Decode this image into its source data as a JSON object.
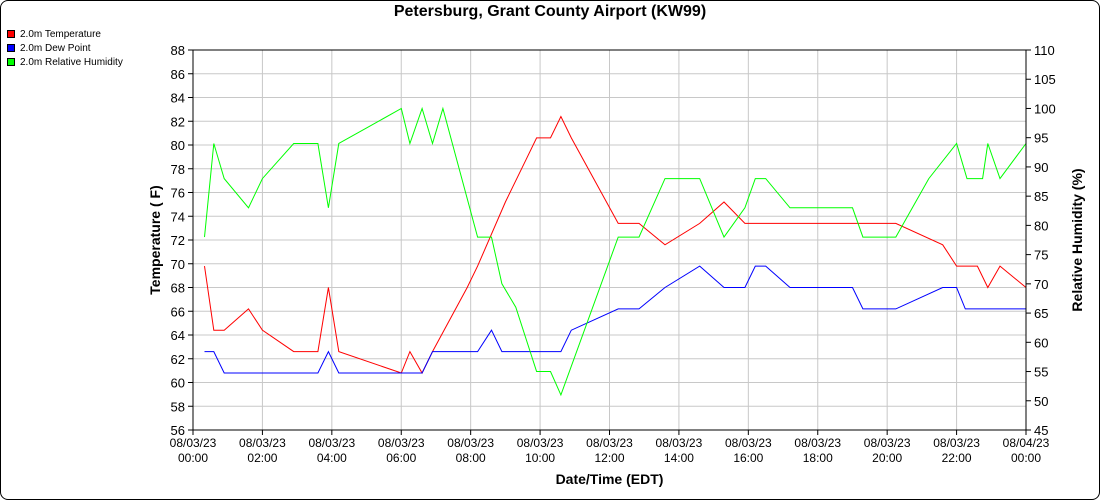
{
  "chart_data": {
    "type": "line",
    "title": "Petersburg, Grant County Airport (KW99)",
    "xlabel": "Date/Time (EDT)",
    "ylabel_left": "Temperature ( F)",
    "ylabel_right": "Relative Humidity (%)",
    "ylim_left": [
      56,
      88
    ],
    "yticks_left": [
      56,
      58,
      60,
      62,
      64,
      66,
      68,
      70,
      72,
      74,
      76,
      78,
      80,
      82,
      84,
      86,
      88
    ],
    "ylim_right": [
      45,
      110
    ],
    "yticks_right": [
      45,
      50,
      55,
      60,
      65,
      70,
      75,
      80,
      85,
      90,
      95,
      100,
      105,
      110
    ],
    "xlim_hours": [
      0,
      24
    ],
    "xticks": [
      {
        "hour": 0,
        "date": "08/03/23",
        "time": "00:00"
      },
      {
        "hour": 2,
        "date": "08/03/23",
        "time": "02:00"
      },
      {
        "hour": 4,
        "date": "08/03/23",
        "time": "04:00"
      },
      {
        "hour": 6,
        "date": "08/03/23",
        "time": "06:00"
      },
      {
        "hour": 8,
        "date": "08/03/23",
        "time": "08:00"
      },
      {
        "hour": 10,
        "date": "08/03/23",
        "time": "10:00"
      },
      {
        "hour": 12,
        "date": "08/03/23",
        "time": "12:00"
      },
      {
        "hour": 14,
        "date": "08/03/23",
        "time": "14:00"
      },
      {
        "hour": 16,
        "date": "08/03/23",
        "time": "16:00"
      },
      {
        "hour": 18,
        "date": "08/03/23",
        "time": "18:00"
      },
      {
        "hour": 20,
        "date": "08/03/23",
        "time": "20:00"
      },
      {
        "hour": 22,
        "date": "08/03/23",
        "time": "22:00"
      },
      {
        "hour": 24,
        "date": "08/04/23",
        "time": "00:00"
      }
    ],
    "grid": true,
    "legend_position": "top-left",
    "series": [
      {
        "name": "2.0m Temperature",
        "color": "#ff0000",
        "axis": "left",
        "points": [
          [
            0.33,
            69.8
          ],
          [
            0.6,
            64.4
          ],
          [
            0.9,
            64.4
          ],
          [
            1.6,
            66.2
          ],
          [
            2.0,
            64.4
          ],
          [
            2.9,
            62.6
          ],
          [
            3.6,
            62.6
          ],
          [
            3.9,
            68.0
          ],
          [
            4.2,
            62.6
          ],
          [
            6.0,
            60.8
          ],
          [
            6.25,
            62.6
          ],
          [
            6.6,
            60.8
          ],
          [
            6.9,
            62.6
          ],
          [
            7.9,
            68.0
          ],
          [
            8.2,
            69.8
          ],
          [
            9.0,
            75.2
          ],
          [
            9.6,
            78.8
          ],
          [
            9.9,
            80.6
          ],
          [
            10.3,
            80.6
          ],
          [
            10.6,
            82.4
          ],
          [
            10.9,
            80.6
          ],
          [
            12.25,
            73.4
          ],
          [
            12.85,
            73.4
          ],
          [
            13.6,
            71.6
          ],
          [
            14.6,
            73.4
          ],
          [
            15.3,
            75.2
          ],
          [
            15.9,
            73.4
          ],
          [
            16.5,
            73.4
          ],
          [
            19.9,
            73.4
          ],
          [
            20.25,
            73.4
          ],
          [
            21.6,
            71.6
          ],
          [
            22.0,
            69.8
          ],
          [
            22.6,
            69.8
          ],
          [
            22.9,
            68.0
          ],
          [
            23.25,
            69.8
          ],
          [
            24.0,
            68.0
          ]
        ]
      },
      {
        "name": "2.0m Dew Point",
        "color": "#0000ff",
        "axis": "left",
        "points": [
          [
            0.33,
            62.6
          ],
          [
            0.6,
            62.6
          ],
          [
            0.9,
            60.8
          ],
          [
            3.6,
            60.8
          ],
          [
            3.9,
            62.6
          ],
          [
            4.2,
            60.8
          ],
          [
            6.0,
            60.8
          ],
          [
            6.6,
            60.8
          ],
          [
            6.9,
            62.6
          ],
          [
            8.2,
            62.6
          ],
          [
            8.6,
            64.4
          ],
          [
            8.9,
            62.6
          ],
          [
            10.6,
            62.6
          ],
          [
            10.9,
            64.4
          ],
          [
            12.25,
            66.2
          ],
          [
            12.85,
            66.2
          ],
          [
            13.6,
            68.0
          ],
          [
            14.6,
            69.8
          ],
          [
            15.3,
            68.0
          ],
          [
            15.9,
            68.0
          ],
          [
            16.2,
            69.8
          ],
          [
            16.5,
            69.8
          ],
          [
            17.2,
            68.0
          ],
          [
            19.0,
            68.0
          ],
          [
            19.3,
            66.2
          ],
          [
            20.25,
            66.2
          ],
          [
            21.6,
            68.0
          ],
          [
            22.0,
            68.0
          ],
          [
            22.25,
            66.2
          ],
          [
            24.0,
            66.2
          ]
        ]
      },
      {
        "name": "2.0m Relative Humidity",
        "color": "#00ff00",
        "axis": "right",
        "points": [
          [
            0.33,
            78
          ],
          [
            0.6,
            94
          ],
          [
            0.9,
            88
          ],
          [
            1.6,
            83
          ],
          [
            2.0,
            88
          ],
          [
            2.9,
            94
          ],
          [
            3.6,
            94
          ],
          [
            3.9,
            83
          ],
          [
            4.2,
            94
          ],
          [
            6.0,
            100
          ],
          [
            6.25,
            94
          ],
          [
            6.6,
            100
          ],
          [
            6.9,
            94
          ],
          [
            7.2,
            100
          ],
          [
            8.2,
            78
          ],
          [
            8.6,
            78
          ],
          [
            8.9,
            70
          ],
          [
            9.3,
            66
          ],
          [
            9.9,
            55
          ],
          [
            10.3,
            55
          ],
          [
            10.6,
            51
          ],
          [
            12.25,
            78
          ],
          [
            12.85,
            78
          ],
          [
            13.6,
            88
          ],
          [
            14.6,
            88
          ],
          [
            15.3,
            78
          ],
          [
            15.9,
            83
          ],
          [
            16.2,
            88
          ],
          [
            16.5,
            88
          ],
          [
            17.2,
            83
          ],
          [
            19.0,
            83
          ],
          [
            19.3,
            78
          ],
          [
            20.25,
            78
          ],
          [
            21.2,
            88
          ],
          [
            22.0,
            94
          ],
          [
            22.3,
            88
          ],
          [
            22.75,
            88
          ],
          [
            22.9,
            94
          ],
          [
            23.25,
            88
          ],
          [
            24.0,
            94
          ]
        ]
      }
    ]
  }
}
